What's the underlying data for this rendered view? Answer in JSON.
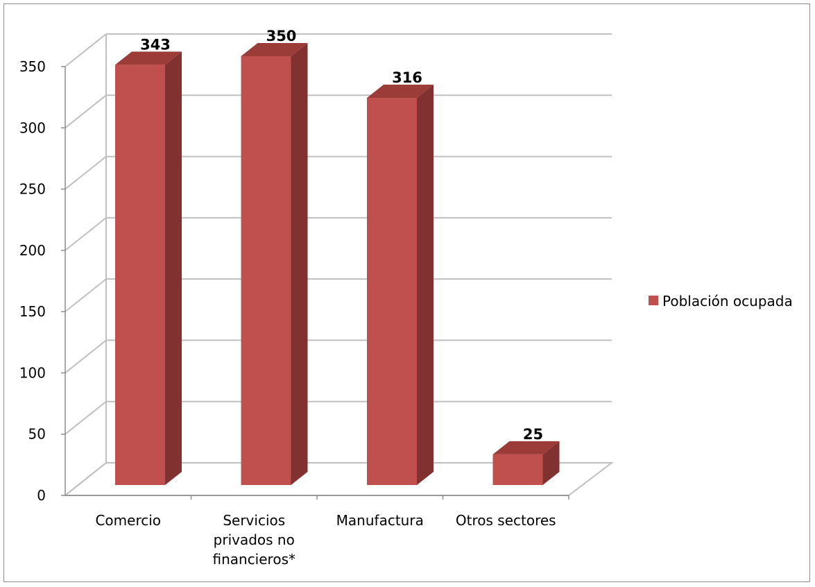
{
  "chart_data": {
    "type": "bar",
    "style": "3d-clustered-column",
    "title": "",
    "xlabel": "",
    "ylabel": "",
    "categories": [
      [
        "Comercio"
      ],
      [
        "Servicios",
        "privados no",
        "financieros*"
      ],
      [
        "Manufactura"
      ],
      [
        "Otros sectores"
      ]
    ],
    "series": [
      {
        "name": "Población ocupada",
        "values": [
          343,
          350,
          316,
          25
        ]
      }
    ],
    "data_labels": [
      "343",
      "350",
      "316",
      "25"
    ],
    "ylim": [
      0,
      350
    ],
    "yticks": [
      0,
      50,
      100,
      150,
      200,
      250,
      300,
      350
    ],
    "grid": true,
    "legend_position": "right",
    "colors": {
      "bar_front": "#c0504d",
      "bar_side": "#813230",
      "bar_top": "#9c3c39",
      "gridline": "#bfbfbf",
      "axis": "#8c8c8c"
    }
  }
}
